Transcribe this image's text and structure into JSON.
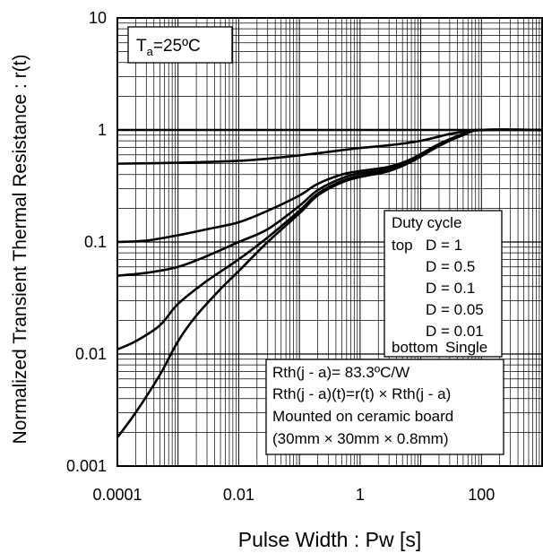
{
  "chart_data": {
    "type": "line",
    "xlabel": "Pulse Width : Pw [s]",
    "ylabel": "Normalized Transient Thermal Resistance : r(t)",
    "x_scale": "log",
    "y_scale": "log",
    "xlim": [
      0.0001,
      1000
    ],
    "ylim": [
      0.001,
      10
    ],
    "x_ticks": [
      {
        "value": 0.0001,
        "label": "0.0001"
      },
      {
        "value": 0.01,
        "label": "0.01"
      },
      {
        "value": 1,
        "label": "1"
      },
      {
        "value": 100,
        "label": "100"
      }
    ],
    "y_ticks": [
      {
        "value": 10,
        "label": "10"
      },
      {
        "value": 1,
        "label": "1"
      },
      {
        "value": 0.1,
        "label": "0.1"
      },
      {
        "value": 0.01,
        "label": "0.01"
      },
      {
        "value": 0.001,
        "label": "0.001"
      }
    ],
    "grid": true,
    "series": [
      {
        "name": "D = 1",
        "points": [
          [
            0.0001,
            1
          ],
          [
            1000,
            1
          ]
        ]
      },
      {
        "name": "D = 0.5",
        "points": [
          [
            0.0001,
            0.5
          ],
          [
            0.001,
            0.51
          ],
          [
            0.01,
            0.53
          ],
          [
            0.05,
            0.57
          ],
          [
            0.2,
            0.62
          ],
          [
            0.5,
            0.66
          ],
          [
            1,
            0.69
          ],
          [
            3,
            0.73
          ],
          [
            10,
            0.8
          ],
          [
            30,
            0.92
          ],
          [
            70,
            0.99
          ],
          [
            100,
            1
          ],
          [
            1000,
            1
          ]
        ]
      },
      {
        "name": "D = 0.1",
        "points": [
          [
            0.0001,
            0.1
          ],
          [
            0.0003,
            0.103
          ],
          [
            0.001,
            0.115
          ],
          [
            0.003,
            0.13
          ],
          [
            0.01,
            0.15
          ],
          [
            0.03,
            0.19
          ],
          [
            0.1,
            0.26
          ],
          [
            0.2,
            0.33
          ],
          [
            0.5,
            0.4
          ],
          [
            1,
            0.43
          ],
          [
            3,
            0.47
          ],
          [
            7,
            0.55
          ],
          [
            20,
            0.75
          ],
          [
            50,
            0.92
          ],
          [
            100,
            1
          ],
          [
            1000,
            1
          ]
        ]
      },
      {
        "name": "D = 0.05",
        "points": [
          [
            0.0001,
            0.05
          ],
          [
            0.0003,
            0.053
          ],
          [
            0.001,
            0.06
          ],
          [
            0.003,
            0.075
          ],
          [
            0.01,
            0.1
          ],
          [
            0.03,
            0.13
          ],
          [
            0.1,
            0.21
          ],
          [
            0.2,
            0.29
          ],
          [
            0.5,
            0.37
          ],
          [
            1,
            0.41
          ],
          [
            3,
            0.45
          ],
          [
            7,
            0.54
          ],
          [
            20,
            0.74
          ],
          [
            50,
            0.91
          ],
          [
            100,
            1
          ],
          [
            1000,
            1
          ]
        ]
      },
      {
        "name": "D = 0.01",
        "points": [
          [
            0.0001,
            0.011
          ],
          [
            0.0002,
            0.013
          ],
          [
            0.0005,
            0.018
          ],
          [
            0.001,
            0.028
          ],
          [
            0.003,
            0.045
          ],
          [
            0.01,
            0.07
          ],
          [
            0.03,
            0.11
          ],
          [
            0.1,
            0.19
          ],
          [
            0.2,
            0.27
          ],
          [
            0.5,
            0.35
          ],
          [
            1,
            0.39
          ],
          [
            3,
            0.44
          ],
          [
            7,
            0.53
          ],
          [
            20,
            0.73
          ],
          [
            50,
            0.9
          ],
          [
            100,
            1
          ],
          [
            1000,
            1
          ]
        ]
      },
      {
        "name": "Single",
        "points": [
          [
            0.0001,
            0.0018
          ],
          [
            0.0002,
            0.003
          ],
          [
            0.0005,
            0.0065
          ],
          [
            0.001,
            0.013
          ],
          [
            0.002,
            0.022
          ],
          [
            0.005,
            0.038
          ],
          [
            0.01,
            0.055
          ],
          [
            0.03,
            0.1
          ],
          [
            0.1,
            0.18
          ],
          [
            0.2,
            0.26
          ],
          [
            0.5,
            0.34
          ],
          [
            1,
            0.38
          ],
          [
            3,
            0.43
          ],
          [
            7,
            0.52
          ],
          [
            20,
            0.72
          ],
          [
            50,
            0.9
          ],
          [
            100,
            1
          ],
          [
            1000,
            1
          ]
        ]
      }
    ],
    "annotations": {
      "ambient": {
        "prefix": "T",
        "sub": "a",
        "suffix": "=25ºC"
      },
      "legend": {
        "title": "Duty cycle",
        "top_word": "top",
        "bottom_word": "bottom",
        "entries": [
          "D = 1",
          "D = 0.5",
          "D = 0.1",
          "D = 0.05",
          "D = 0.01",
          "Single"
        ],
        "placement": "right-middle"
      },
      "notes": [
        "Rth(j - a)= 83.3ºC/W",
        "Rth(j - a)(t)=r(t) × Rth(j - a)",
        "Mounted on ceramic board",
        "(30mm × 30mm × 0.8mm)"
      ]
    }
  }
}
